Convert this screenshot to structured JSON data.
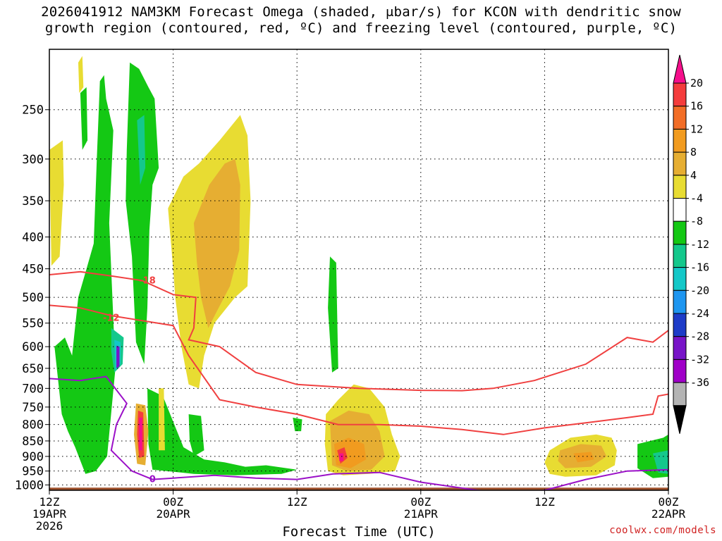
{
  "title": {
    "line1": "2026041912 NAM3KM Forecast Omega (shaded, μbar/s) for KCON with dendritic snow",
    "line2": "growth region (contoured, red, ºC) and freezing level (contoured, purple, ºC)"
  },
  "credit": "coolwx.com/models",
  "chart_data": {
    "type": "heatmap",
    "title": "2026041912 NAM3KM Forecast Omega (shaded, μbar/s) for KCON with dendritic snow growth region (contoured, red, ºC) and freezing level (contoured, purple, ºC)",
    "xlabel": "Forecast Time (UTC)",
    "ylabel": "",
    "x_range_hours": [
      0,
      60
    ],
    "x_ticks": [
      {
        "hour": 0,
        "lines": [
          "12Z",
          "19APR",
          "2026"
        ]
      },
      {
        "hour": 12,
        "lines": [
          "00Z",
          "20APR"
        ]
      },
      {
        "hour": 24,
        "lines": [
          "12Z"
        ]
      },
      {
        "hour": 36,
        "lines": [
          "00Z",
          "21APR"
        ]
      },
      {
        "hour": 48,
        "lines": [
          "12Z"
        ]
      },
      {
        "hour": 60,
        "lines": [
          "00Z",
          "22APR"
        ]
      }
    ],
    "y_ticks_hPa": [
      250,
      300,
      350,
      400,
      450,
      500,
      550,
      600,
      650,
      700,
      750,
      800,
      850,
      900,
      950,
      1000
    ],
    "y_range_hPa": [
      200,
      1020
    ],
    "y_scale": "log",
    "grid": true,
    "colorbar": {
      "labels": [
        "20",
        "16",
        "12",
        "8",
        "4",
        "-4",
        "-8",
        "-12",
        "-16",
        "-20",
        "-24",
        "-28",
        "-32",
        "-36"
      ],
      "colors": [
        "#f50f8b",
        "#f43c3c",
        "#f26d26",
        "#f19b1f",
        "#e6ae32",
        "#e8dc32",
        "#ffffff",
        "#14c814",
        "#14c88c",
        "#14c8c8",
        "#1e96f0",
        "#1e3cc8",
        "#7814c8",
        "#a000c8",
        "#b4b4b4",
        "#000000"
      ]
    },
    "omega_regions": [
      {
        "value": -8,
        "poly": [
          [
            3.0,
            235
          ],
          [
            3.6,
            230
          ],
          [
            3.7,
            280
          ],
          [
            3.2,
            290
          ]
        ]
      },
      {
        "value": -8,
        "poly": [
          [
            5.5,
            240
          ],
          [
            6.2,
            270
          ],
          [
            5.8,
            380
          ],
          [
            6.4,
            650
          ],
          [
            5.6,
            900
          ],
          [
            4.5,
            950
          ],
          [
            3.5,
            960
          ],
          [
            2.5,
            870
          ],
          [
            1.8,
            820
          ],
          [
            1.2,
            770
          ],
          [
            0.5,
            600
          ],
          [
            1.5,
            580
          ],
          [
            2.2,
            620
          ],
          [
            2.8,
            500
          ],
          [
            3.6,
            450
          ],
          [
            4.3,
            410
          ],
          [
            4.6,
            300
          ],
          [
            4.9,
            225
          ],
          [
            5.3,
            220
          ]
        ]
      },
      {
        "value": -8,
        "poly": [
          [
            7.8,
            210
          ],
          [
            8.7,
            215
          ],
          [
            9.6,
            230
          ],
          [
            10.2,
            240
          ],
          [
            10.6,
            310
          ],
          [
            10.0,
            330
          ],
          [
            9.7,
            390
          ],
          [
            9.5,
            520
          ],
          [
            9.2,
            640
          ],
          [
            8.4,
            590
          ],
          [
            8.0,
            430
          ],
          [
            7.4,
            350
          ],
          [
            7.5,
            290
          ]
        ]
      },
      {
        "value": -12,
        "poly": [
          [
            6.0,
            560
          ],
          [
            7.2,
            580
          ],
          [
            7.1,
            640
          ],
          [
            6.3,
            660
          ],
          [
            6.0,
            610
          ]
        ]
      },
      {
        "value": -16,
        "poly": [
          [
            6.3,
            585
          ],
          [
            6.9,
            590
          ],
          [
            6.9,
            640
          ],
          [
            6.4,
            655
          ]
        ]
      },
      {
        "value": -28,
        "poly": [
          [
            6.5,
            598
          ],
          [
            6.8,
            600
          ],
          [
            6.8,
            645
          ],
          [
            6.5,
            650
          ]
        ]
      },
      {
        "value": -12,
        "poly": [
          [
            8.5,
            260
          ],
          [
            9.2,
            255
          ],
          [
            9.3,
            310
          ],
          [
            8.8,
            330
          ]
        ]
      },
      {
        "value": -8,
        "poly": [
          [
            9.5,
            700
          ],
          [
            11.0,
            720
          ],
          [
            13.0,
            870
          ],
          [
            15.0,
            910
          ],
          [
            17.0,
            920
          ],
          [
            19.0,
            935
          ],
          [
            21.0,
            930
          ],
          [
            24.0,
            945
          ],
          [
            22.5,
            960
          ],
          [
            18.0,
            965
          ],
          [
            14.0,
            960
          ],
          [
            10.0,
            945
          ],
          [
            9.6,
            860
          ]
        ]
      },
      {
        "value": -8,
        "poly": [
          [
            13.5,
            770
          ],
          [
            14.7,
            775
          ],
          [
            15.0,
            880
          ],
          [
            14.0,
            900
          ],
          [
            13.6,
            850
          ]
        ]
      },
      {
        "value": -8,
        "poly": [
          [
            27.2,
            430
          ],
          [
            27.8,
            440
          ],
          [
            28.0,
            650
          ],
          [
            27.4,
            660
          ],
          [
            27.0,
            520
          ]
        ]
      },
      {
        "value": -8,
        "poly": [
          [
            23.6,
            780
          ],
          [
            24.5,
            785
          ],
          [
            24.4,
            820
          ],
          [
            23.8,
            820
          ]
        ]
      },
      {
        "value": -8,
        "poly": [
          [
            57.0,
            860
          ],
          [
            59.5,
            840
          ],
          [
            60.0,
            830
          ],
          [
            60.0,
            970
          ],
          [
            58.5,
            975
          ],
          [
            57.0,
            940
          ]
        ]
      },
      {
        "value": -12,
        "poly": [
          [
            58.5,
            890
          ],
          [
            60.0,
            880
          ],
          [
            60.0,
            960
          ],
          [
            59.0,
            955
          ]
        ]
      },
      {
        "value": 4,
        "poly": [
          [
            0.0,
            290
          ],
          [
            1.3,
            280
          ],
          [
            1.4,
            330
          ],
          [
            1.0,
            430
          ],
          [
            0.2,
            445
          ]
        ]
      },
      {
        "value": 4,
        "poly": [
          [
            2.8,
            210
          ],
          [
            3.2,
            205
          ],
          [
            3.3,
            230
          ],
          [
            2.9,
            235
          ]
        ]
      },
      {
        "value": 4,
        "poly": [
          [
            11.5,
            360
          ],
          [
            13.0,
            320
          ],
          [
            14.5,
            305
          ],
          [
            16.5,
            280
          ],
          [
            18.5,
            255
          ],
          [
            19.2,
            275
          ],
          [
            19.5,
            350
          ],
          [
            19.2,
            480
          ],
          [
            18.0,
            500
          ],
          [
            16.0,
            550
          ],
          [
            15.0,
            620
          ],
          [
            14.5,
            700
          ],
          [
            13.5,
            690
          ],
          [
            12.8,
            600
          ],
          [
            12.2,
            500
          ],
          [
            12.0,
            450
          ]
        ]
      },
      {
        "value": 8,
        "poly": [
          [
            14.0,
            380
          ],
          [
            15.5,
            330
          ],
          [
            17.0,
            305
          ],
          [
            18.0,
            300
          ],
          [
            18.5,
            330
          ],
          [
            18.4,
            420
          ],
          [
            17.5,
            480
          ],
          [
            16.4,
            520
          ],
          [
            15.4,
            560
          ],
          [
            14.7,
            500
          ],
          [
            14.3,
            440
          ]
        ]
      },
      {
        "value": 8,
        "poly": [
          [
            8.4,
            740
          ],
          [
            9.3,
            745
          ],
          [
            9.6,
            820
          ],
          [
            9.3,
            930
          ],
          [
            8.5,
            925
          ],
          [
            8.2,
            830
          ]
        ]
      },
      {
        "value": 16,
        "poly": [
          [
            8.6,
            760
          ],
          [
            9.1,
            765
          ],
          [
            9.2,
            900
          ],
          [
            8.7,
            905
          ],
          [
            8.5,
            830
          ]
        ]
      },
      {
        "value": 20,
        "poly": [
          [
            8.7,
            780
          ],
          [
            9.0,
            780
          ],
          [
            9.0,
            880
          ],
          [
            8.7,
            880
          ]
        ]
      },
      {
        "value": 4,
        "poly": [
          [
            10.6,
            700
          ],
          [
            11.1,
            700
          ],
          [
            11.2,
            880
          ],
          [
            10.6,
            880
          ]
        ]
      },
      {
        "value": 4,
        "poly": [
          [
            26.8,
            770
          ],
          [
            28.0,
            730
          ],
          [
            29.5,
            690
          ],
          [
            31.0,
            700
          ],
          [
            32.5,
            750
          ],
          [
            33.2,
            830
          ],
          [
            34.0,
            900
          ],
          [
            33.5,
            950
          ],
          [
            31.0,
            960
          ],
          [
            28.5,
            965
          ],
          [
            27.0,
            950
          ],
          [
            26.7,
            860
          ]
        ]
      },
      {
        "value": 8,
        "poly": [
          [
            27.2,
            790
          ],
          [
            29.0,
            760
          ],
          [
            31.0,
            770
          ],
          [
            32.0,
            820
          ],
          [
            32.5,
            900
          ],
          [
            31.2,
            945
          ],
          [
            28.8,
            950
          ],
          [
            27.4,
            930
          ]
        ]
      },
      {
        "value": 12,
        "poly": [
          [
            27.6,
            860
          ],
          [
            29.0,
            840
          ],
          [
            30.5,
            860
          ],
          [
            30.7,
            910
          ],
          [
            29.2,
            940
          ],
          [
            27.8,
            930
          ]
        ]
      },
      {
        "value": 16,
        "poly": [
          [
            27.9,
            880
          ],
          [
            28.6,
            870
          ],
          [
            28.9,
            905
          ],
          [
            28.2,
            925
          ]
        ]
      },
      {
        "value": 20,
        "poly": [
          [
            28.1,
            890
          ],
          [
            28.5,
            890
          ],
          [
            28.5,
            915
          ],
          [
            28.1,
            915
          ]
        ]
      },
      {
        "value": 4,
        "poly": [
          [
            48.5,
            880
          ],
          [
            50.5,
            840
          ],
          [
            53.0,
            830
          ],
          [
            54.5,
            840
          ],
          [
            55.0,
            880
          ],
          [
            54.8,
            930
          ],
          [
            53.0,
            965
          ],
          [
            50.0,
            970
          ],
          [
            48.5,
            960
          ],
          [
            48.0,
            920
          ]
        ]
      },
      {
        "value": 8,
        "poly": [
          [
            49.5,
            880
          ],
          [
            51.5,
            860
          ],
          [
            53.5,
            865
          ],
          [
            54.0,
            900
          ],
          [
            52.5,
            935
          ],
          [
            50.0,
            940
          ],
          [
            49.3,
            915
          ]
        ]
      },
      {
        "value": 12,
        "poly": [
          [
            50.8,
            890
          ],
          [
            52.5,
            885
          ],
          [
            52.8,
            910
          ],
          [
            51.2,
            920
          ]
        ]
      }
    ],
    "dgz_contours": [
      {
        "label": "-18",
        "label_at": [
          9.5,
          470
        ],
        "points": [
          [
            0,
            460
          ],
          [
            3,
            455
          ],
          [
            6,
            462
          ],
          [
            9,
            470
          ],
          [
            12,
            495
          ],
          [
            14.2,
            500
          ],
          [
            14.0,
            560
          ],
          [
            13.5,
            585
          ],
          [
            16.5,
            600
          ],
          [
            20,
            660
          ],
          [
            24,
            690
          ],
          [
            30,
            700
          ],
          [
            36,
            705
          ],
          [
            40,
            706
          ],
          [
            43,
            700
          ],
          [
            47,
            680
          ],
          [
            52,
            640
          ],
          [
            56,
            580
          ],
          [
            58.5,
            590
          ],
          [
            60,
            565
          ]
        ]
      },
      {
        "label": "-12",
        "label_at": [
          6.0,
          540
        ],
        "points": [
          [
            0,
            515
          ],
          [
            3,
            520
          ],
          [
            6,
            535
          ],
          [
            9,
            545
          ],
          [
            12,
            555
          ],
          [
            13.5,
            620
          ],
          [
            16.5,
            730
          ],
          [
            20,
            750
          ],
          [
            24,
            770
          ],
          [
            28,
            800
          ],
          [
            32,
            800
          ],
          [
            36,
            805
          ],
          [
            40,
            815
          ],
          [
            44,
            830
          ],
          [
            48,
            810
          ],
          [
            52,
            795
          ],
          [
            56,
            780
          ],
          [
            58.5,
            770
          ],
          [
            59,
            720
          ],
          [
            60,
            715
          ]
        ]
      }
    ],
    "freezing_level": {
      "label": "0",
      "label_at": [
        10.0,
        980
      ],
      "points": [
        [
          0,
          675
        ],
        [
          3,
          680
        ],
        [
          5.5,
          670
        ],
        [
          7.5,
          740
        ],
        [
          6.5,
          800
        ],
        [
          6.0,
          880
        ],
        [
          8.0,
          950
        ],
        [
          10.0,
          980
        ],
        [
          12.0,
          975
        ],
        [
          16.0,
          965
        ],
        [
          20.0,
          975
        ],
        [
          24.0,
          980
        ],
        [
          27.5,
          960
        ],
        [
          32.0,
          955
        ],
        [
          36.0,
          990
        ],
        [
          41.5,
          1020
        ],
        [
          45.0,
          1030
        ],
        [
          48.0,
          1020
        ],
        [
          52.0,
          980
        ],
        [
          56.0,
          950
        ],
        [
          60.0,
          945
        ]
      ]
    },
    "terrain_top_hPa": 1010
  }
}
